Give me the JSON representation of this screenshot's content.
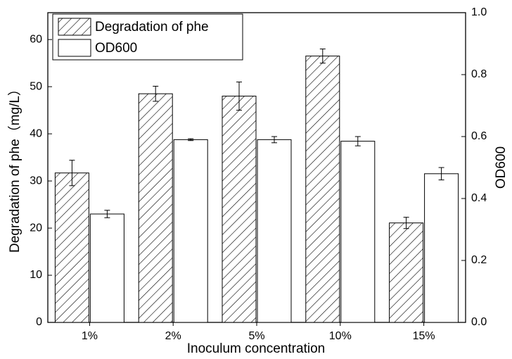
{
  "chart_data": {
    "type": "bar",
    "x_label": "Inoculum concentration",
    "y_label": "Degradation of phe（mg/L）",
    "y2_label": "OD600",
    "categories": [
      "1%",
      "2%",
      "5%",
      "10%",
      "15%"
    ],
    "series": [
      {
        "name": "Degradation of phe",
        "color": "#ffffff",
        "hatch": true,
        "values": [
          31.7,
          48.5,
          48.0,
          56.5,
          21.1
        ],
        "errors": [
          2.7,
          1.6,
          3.0,
          1.5,
          1.2
        ]
      },
      {
        "name": "OD600",
        "color": "#ffffff",
        "hatch": false,
        "axis": "y2",
        "values": [
          0.35,
          0.59,
          0.59,
          0.585,
          0.48
        ],
        "errors": [
          0.012,
          0.003,
          0.01,
          0.015,
          0.02
        ]
      }
    ],
    "ylim": [
      0,
      65.7
    ],
    "yticks": [
      0,
      10,
      20,
      30,
      40,
      50,
      60
    ],
    "y2lim": [
      0,
      1.0
    ],
    "y2ticks": [
      {
        "value": 0,
        "label": "0.0"
      },
      0.2,
      0.4,
      0.6,
      0.8,
      {
        "value": 1,
        "label": "1.0"
      }
    ],
    "legend": "top-left"
  }
}
